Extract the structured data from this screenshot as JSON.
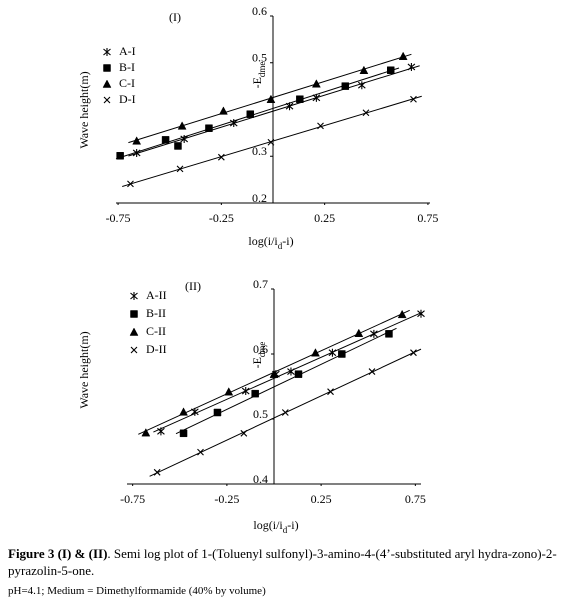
{
  "chart_data": [
    {
      "type": "scatter",
      "title": "(I)",
      "ylabel": "Wave height(m)",
      "y_annotation": [
        "-E",
        "dme"
      ],
      "xlabel": [
        "log(i/i",
        "d",
        "-i)"
      ],
      "xlim": [
        -0.76,
        0.76
      ],
      "ylim": [
        0.2,
        0.6
      ],
      "xticks": [
        -0.75,
        -0.25,
        0.25,
        0.75
      ],
      "yticks": [
        0.2,
        0.3,
        0.5,
        0.6
      ],
      "series": [
        {
          "name": "A-I",
          "color": "#000000",
          "marker": "asterisk",
          "x": [
            -0.66,
            -0.43,
            -0.19,
            0.08,
            0.21,
            0.43,
            0.67
          ],
          "values": [
            0.307,
            0.337,
            0.371,
            0.407,
            0.425,
            0.452,
            0.491
          ]
        },
        {
          "name": "B-I",
          "color": "#000000",
          "marker": "square",
          "x": [
            -0.74,
            -0.52,
            -0.46,
            -0.31,
            -0.11,
            0.13,
            0.35,
            0.57
          ],
          "values": [
            0.301,
            0.335,
            0.322,
            0.36,
            0.39,
            0.422,
            0.45,
            0.484
          ]
        },
        {
          "name": "C-I",
          "color": "#000000",
          "marker": "triangle",
          "x": [
            -0.66,
            -0.44,
            -0.24,
            -0.01,
            0.21,
            0.44,
            0.63
          ],
          "values": [
            0.333,
            0.365,
            0.397,
            0.422,
            0.455,
            0.484,
            0.514
          ]
        },
        {
          "name": "D-I",
          "color": "#000000",
          "marker": "cross",
          "x": [
            -0.69,
            -0.45,
            -0.25,
            -0.01,
            0.23,
            0.45,
            0.68
          ],
          "values": [
            0.241,
            0.273,
            0.298,
            0.33,
            0.365,
            0.393,
            0.422
          ]
        }
      ]
    },
    {
      "type": "scatter",
      "title": "(II)",
      "ylabel": "Wave height(m)",
      "y_annotation": [
        "-E",
        "dme"
      ],
      "xlabel": [
        "log(i/i",
        "d",
        "-i)"
      ],
      "xlim": [
        -0.78,
        0.78
      ],
      "ylim": [
        0.4,
        0.7
      ],
      "xticks": [
        -0.75,
        -0.25,
        0.25,
        0.75
      ],
      "yticks": [
        0.4,
        0.5,
        0.6,
        0.7
      ],
      "series": [
        {
          "name": "A-II",
          "color": "#000000",
          "marker": "asterisk",
          "x": [
            -0.6,
            -0.42,
            -0.15,
            0.01,
            0.09,
            0.31,
            0.53,
            0.78
          ],
          "values": [
            0.481,
            0.511,
            0.543,
            0.569,
            0.573,
            0.602,
            0.631,
            0.662
          ]
        },
        {
          "name": "B-II",
          "color": "#000000",
          "marker": "square",
          "x": [
            -0.48,
            -0.3,
            -0.1,
            0.13,
            0.36,
            0.61
          ],
          "values": [
            0.478,
            0.51,
            0.539,
            0.569,
            0.6,
            0.631
          ]
        },
        {
          "name": "C-II",
          "color": "#000000",
          "marker": "triangle",
          "x": [
            -0.68,
            -0.48,
            -0.24,
            0.0,
            0.22,
            0.45,
            0.68
          ],
          "values": [
            0.479,
            0.511,
            0.542,
            0.569,
            0.602,
            0.632,
            0.661
          ]
        },
        {
          "name": "D-II",
          "color": "#000000",
          "marker": "cross",
          "x": [
            -0.62,
            -0.39,
            -0.16,
            0.06,
            0.3,
            0.52,
            0.74
          ],
          "values": [
            0.418,
            0.449,
            0.478,
            0.51,
            0.542,
            0.573,
            0.602
          ]
        }
      ]
    }
  ],
  "caption": {
    "label": "Figure 3 (I) & (II)",
    "text": ". Semi log plot of 1-(Toluenyl sulfonyl)-3-amino-4-(4’-substituted aryl hydra-zono)-2-pyrazolin-5-one.",
    "note": "pH=4.1; Medium = Dimethylformamide (40% by volume)"
  }
}
